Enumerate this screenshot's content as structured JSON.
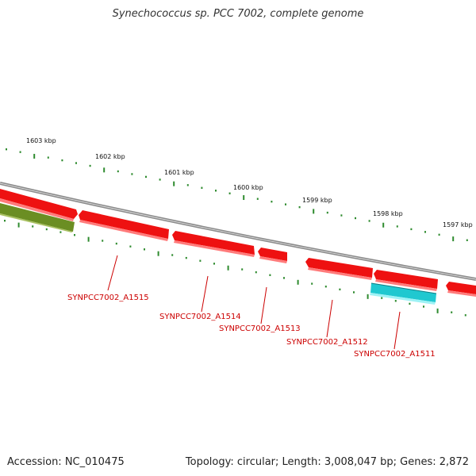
{
  "title": "Synechococcus sp. PCC 7002, complete genome",
  "footer": {
    "accession": "Accession: NC_010475",
    "summary": "Topology: circular; Length: 3,008,047 bp; Genes: 2,872"
  },
  "colors": {
    "backbone": "#8a8a8a",
    "tick": "#2e8b2e",
    "gene_forward": "#ee1111",
    "gene_reverse": "#ee1111",
    "gene_rna": "#20c8d0",
    "gene_other": "#6b8e23",
    "label": "#cc0000"
  },
  "scale_labels": [
    "1603 kbp",
    "1602 kbp",
    "1601 kbp",
    "1600 kbp",
    "1599 kbp",
    "1598 kbp",
    "1597 kbp"
  ],
  "genes": [
    {
      "label": "SYNPCC7002_A1515"
    },
    {
      "label": "SYNPCC7002_A1514"
    },
    {
      "label": "SYNPCC7002_A1513"
    },
    {
      "label": "SYNPCC7002_A1512"
    },
    {
      "label": "SYNPCC7002_A1511"
    }
  ]
}
